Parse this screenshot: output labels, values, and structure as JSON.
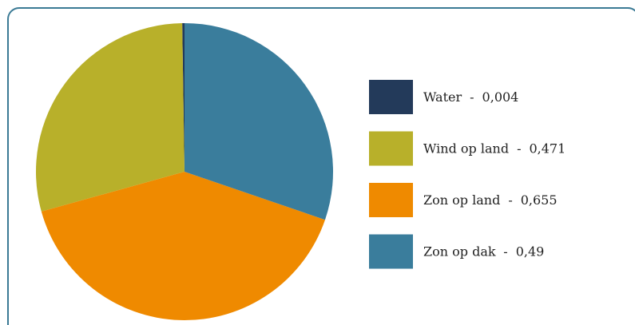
{
  "chart_data": {
    "type": "pie",
    "categories": [
      "Water",
      "Wind op land",
      "Zon op land",
      "Zon op dak"
    ],
    "values": [
      0.004,
      0.471,
      0.655,
      0.49
    ],
    "value_labels": [
      "0,004",
      "0,471",
      "0,655",
      "0,49"
    ],
    "colors": [
      "#233a5a",
      "#b8b02a",
      "#ef8a00",
      "#3a7d9c"
    ],
    "legend_separator": "-",
    "legend": "right"
  }
}
